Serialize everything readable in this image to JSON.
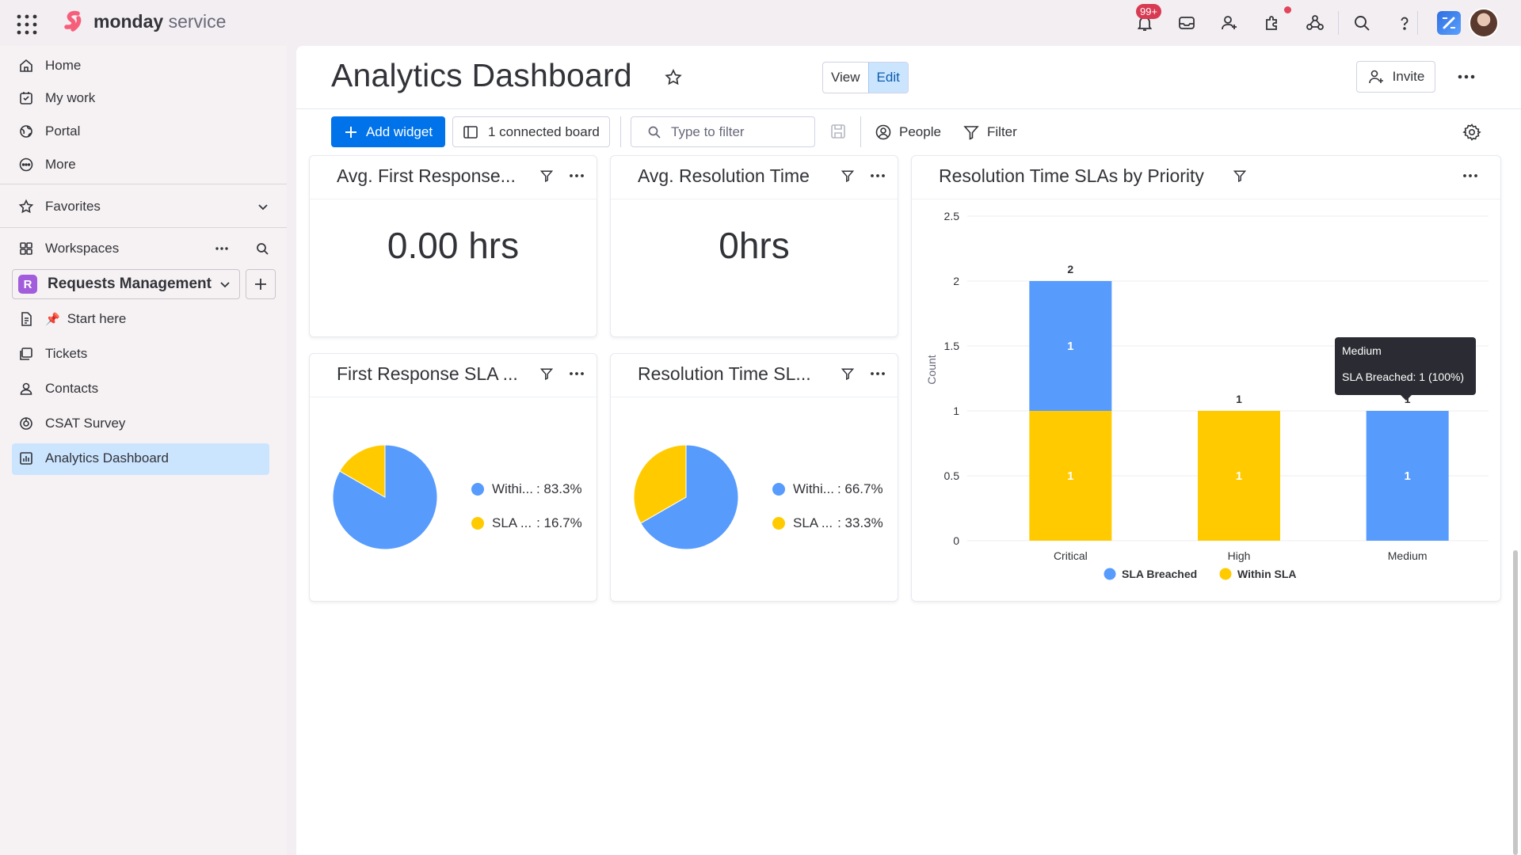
{
  "brand": {
    "name_bold": "monday",
    "name_light": " service"
  },
  "topbar": {
    "notification_badge": "99+"
  },
  "sidebar": {
    "nav": [
      {
        "label": "Home",
        "icon": "home-icon"
      },
      {
        "label": "My work",
        "icon": "checkbox-icon"
      },
      {
        "label": "Portal",
        "icon": "globe-icon"
      },
      {
        "label": "More",
        "icon": "more-circle-icon"
      }
    ],
    "favorites_label": "Favorites",
    "workspaces_label": "Workspaces",
    "workspace": {
      "badge": "R",
      "name": "Requests Management",
      "color": "#a25ddc"
    },
    "items": [
      {
        "label": "Start here",
        "icon": "doc-icon",
        "emoji": "📌"
      },
      {
        "label": "Tickets",
        "icon": "board-icon"
      },
      {
        "label": "Contacts",
        "icon": "contacts-icon"
      },
      {
        "label": "CSAT Survey",
        "icon": "survey-icon"
      },
      {
        "label": "Analytics Dashboard",
        "icon": "dashboard-icon"
      }
    ]
  },
  "header": {
    "title": "Analytics Dashboard",
    "view_label": "View",
    "edit_label": "Edit",
    "invite_label": "Invite"
  },
  "toolbar": {
    "add_widget_label": "Add widget",
    "connected_board_label": "1 connected board",
    "filter_placeholder": "Type to filter",
    "people_label": "People",
    "filter_label": "Filter"
  },
  "widgets": {
    "avg_first_response": {
      "title": "Avg. First Response...",
      "value": "0.00 hrs"
    },
    "avg_resolution": {
      "title": "Avg. Resolution Time",
      "value": "0hrs"
    },
    "first_response_sla": {
      "title": "First Response SLA ...",
      "legend": [
        {
          "name": "Withi...",
          "pct": ": 83.3%"
        },
        {
          "name": "SLA ...",
          "pct": ": 16.7%"
        }
      ]
    },
    "resolution_sla": {
      "title": "Resolution Time SL...",
      "legend": [
        {
          "name": "Withi...",
          "pct": ": 66.7%"
        },
        {
          "name": "SLA ...",
          "pct": ": 33.3%"
        }
      ]
    },
    "sla_by_priority": {
      "title": "Resolution Time SLAs by Priority",
      "tooltip": {
        "category": "Medium",
        "text": "SLA Breached: 1 (100%)"
      }
    }
  },
  "colors": {
    "blue": "#579bfc",
    "yellow": "#ffcb00",
    "primary": "#0073ea"
  },
  "chart_data": [
    {
      "type": "pie",
      "title": "First Response SLA ...",
      "slices": [
        {
          "label": "Within SLA",
          "value": 83.3,
          "color": "#579bfc"
        },
        {
          "label": "SLA Breached",
          "value": 16.7,
          "color": "#ffcb00"
        }
      ]
    },
    {
      "type": "pie",
      "title": "Resolution Time SL...",
      "slices": [
        {
          "label": "Within SLA",
          "value": 66.7,
          "color": "#579bfc"
        },
        {
          "label": "SLA Breached",
          "value": 33.3,
          "color": "#ffcb00"
        }
      ]
    },
    {
      "type": "bar",
      "stacked": true,
      "title": "Resolution Time SLAs by Priority",
      "categories": [
        "Critical",
        "High",
        "Medium"
      ],
      "series": [
        {
          "name": "Within SLA",
          "values": [
            1,
            1,
            0
          ],
          "color": "#ffcb00"
        },
        {
          "name": "SLA Breached",
          "values": [
            1,
            0,
            1
          ],
          "color": "#579bfc"
        }
      ],
      "totals": [
        2,
        1,
        1
      ],
      "ylabel": "Count",
      "ylim": [
        0,
        2.5
      ],
      "yticks": [
        0,
        0.5,
        1,
        1.5,
        2,
        2.5
      ],
      "legend": [
        {
          "name": "SLA Breached",
          "color": "#579bfc"
        },
        {
          "name": "Within SLA",
          "color": "#ffcb00"
        }
      ],
      "legend_position": "bottom"
    }
  ]
}
